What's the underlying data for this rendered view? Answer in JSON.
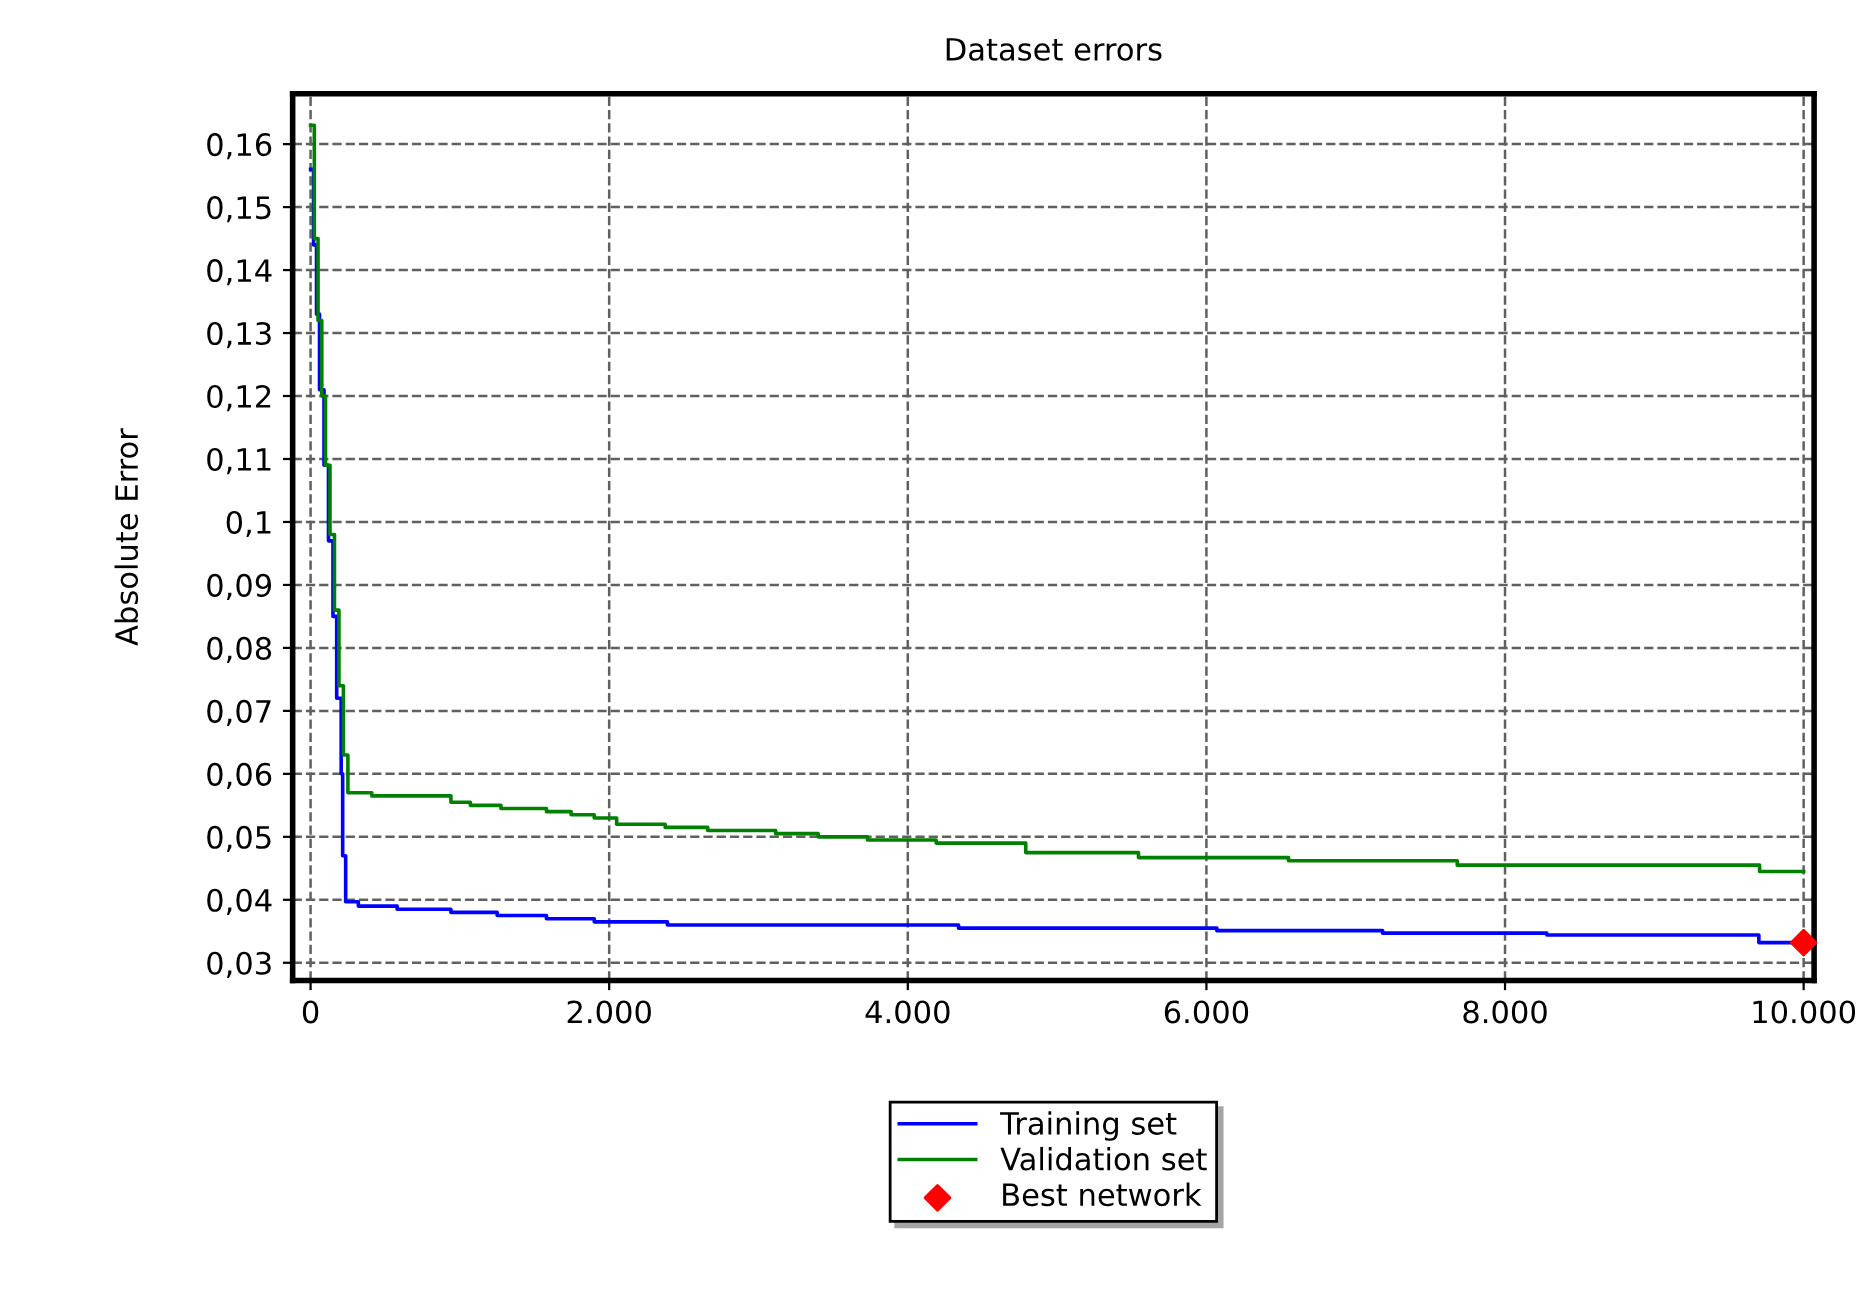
{
  "chart_data": {
    "type": "step",
    "title": "Dataset errors",
    "ylabel": "Absolute Error",
    "xlim": [
      -120,
      10070
    ],
    "ylim": [
      0.0272,
      0.168
    ],
    "xticks": [
      {
        "value": 0,
        "label": "0"
      },
      {
        "value": 2000,
        "label": "2.000"
      },
      {
        "value": 4000,
        "label": "4.000"
      },
      {
        "value": 6000,
        "label": "6.000"
      },
      {
        "value": 8000,
        "label": "8.000"
      },
      {
        "value": 10000,
        "label": "10.000"
      }
    ],
    "yticks": [
      {
        "value": 0.03,
        "label": "0,03"
      },
      {
        "value": 0.04,
        "label": "0,04"
      },
      {
        "value": 0.05,
        "label": "0,05"
      },
      {
        "value": 0.06,
        "label": "0,06"
      },
      {
        "value": 0.07,
        "label": "0,07"
      },
      {
        "value": 0.08,
        "label": "0,08"
      },
      {
        "value": 0.09,
        "label": "0,09"
      },
      {
        "value": 0.1,
        "label": "0,1"
      },
      {
        "value": 0.11,
        "label": "0,11"
      },
      {
        "value": 0.12,
        "label": "0,12"
      },
      {
        "value": 0.13,
        "label": "0,13"
      },
      {
        "value": 0.14,
        "label": "0,14"
      },
      {
        "value": 0.15,
        "label": "0,15"
      },
      {
        "value": 0.16,
        "label": "0,16"
      }
    ],
    "grid": true,
    "legend": "bottom",
    "series": [
      {
        "name": "Training set",
        "color": "#0000ff",
        "x": [
          0,
          20,
          40,
          60,
          90,
          120,
          150,
          175,
          205,
          215,
          235,
          320,
          580,
          940,
          1250,
          1580,
          1900,
          2390,
          4340,
          6070,
          7180,
          8280,
          9700,
          10000
        ],
        "values": [
          0.156,
          0.144,
          0.133,
          0.121,
          0.109,
          0.097,
          0.085,
          0.072,
          0.06,
          0.047,
          0.0397,
          0.039,
          0.0385,
          0.038,
          0.0375,
          0.037,
          0.0365,
          0.036,
          0.0355,
          0.0351,
          0.0347,
          0.0344,
          0.0332,
          0.0332
        ]
      },
      {
        "name": "Validation set",
        "color": "#008000",
        "x": [
          0,
          25,
          50,
          75,
          100,
          130,
          160,
          190,
          220,
          250,
          410,
          940,
          1070,
          1275,
          1580,
          1745,
          1900,
          2050,
          2375,
          2660,
          3115,
          3400,
          3730,
          4190,
          4790,
          5545,
          6550,
          7680,
          9705,
          10000
        ],
        "values": [
          0.163,
          0.145,
          0.132,
          0.12,
          0.109,
          0.098,
          0.086,
          0.074,
          0.063,
          0.057,
          0.0565,
          0.0555,
          0.055,
          0.0545,
          0.054,
          0.0535,
          0.053,
          0.052,
          0.0515,
          0.051,
          0.0505,
          0.05,
          0.0495,
          0.049,
          0.0475,
          0.0467,
          0.0462,
          0.0455,
          0.0445,
          0.0445
        ]
      },
      {
        "name": "Best network",
        "type": "scatter",
        "color": "#ff0000",
        "marker": "diamond",
        "x": [
          10000
        ],
        "values": [
          0.0332
        ]
      }
    ]
  }
}
